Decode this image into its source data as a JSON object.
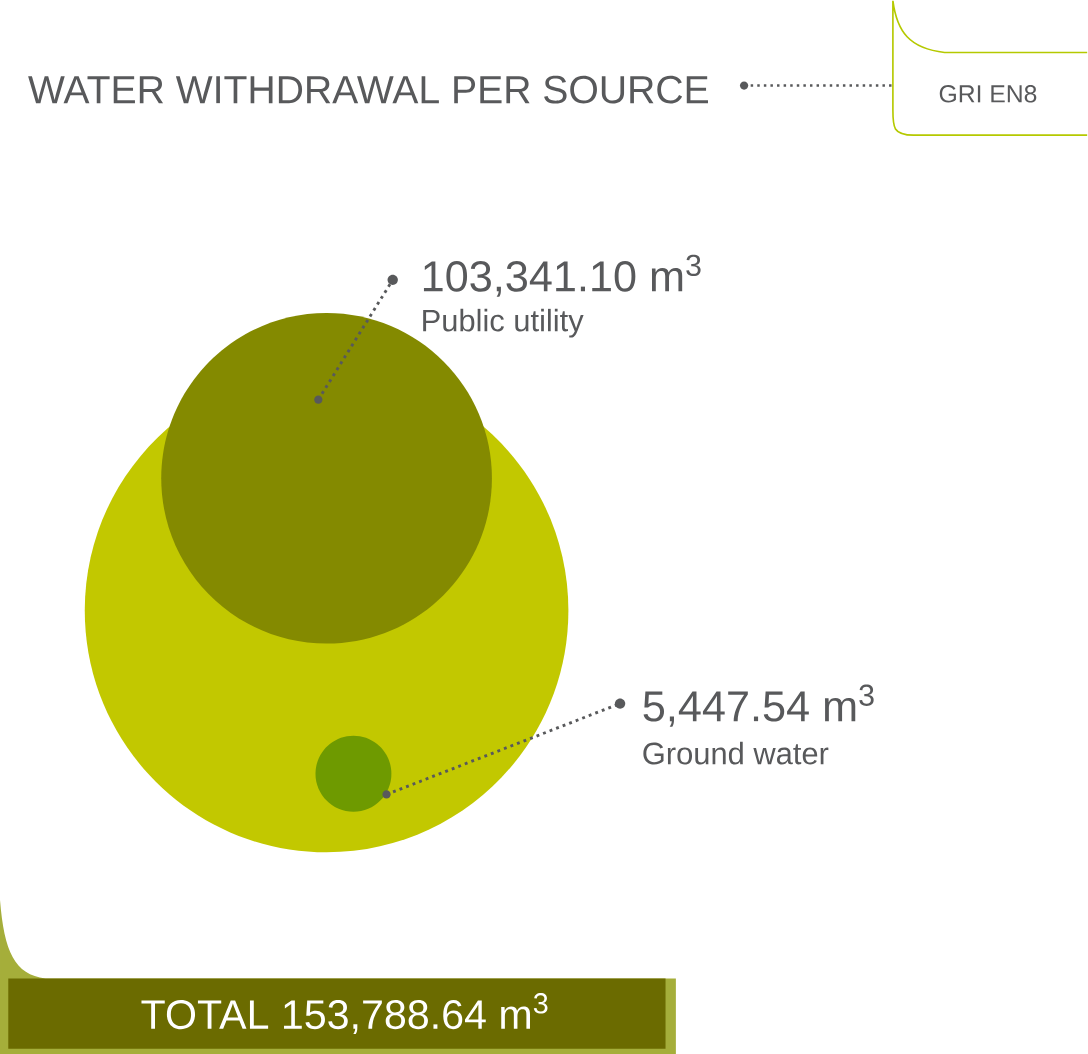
{
  "chart_data": {
    "type": "other",
    "title": "WATER WITHDRAWAL PER SOURCE",
    "categories": [
      "Public utility",
      "Ground water"
    ],
    "values": [
      103341.1,
      5447.54
    ],
    "value_labels": [
      "103,341.10 m$^{3}$",
      "5,447.54 m$^{3}$"
    ],
    "colors": [
      "#848a00",
      "#6e9a00"
    ],
    "annotations": [
      "TOTAL 153,788.64 m$^{3}$",
      "GRI EN8"
    ]
  }
}
